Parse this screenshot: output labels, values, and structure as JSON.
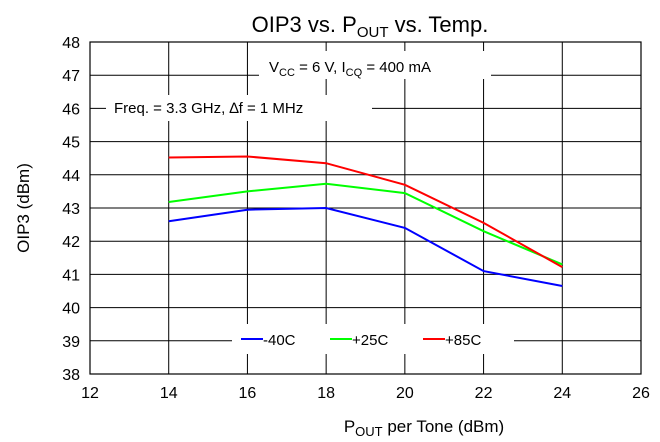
{
  "chart_data": {
    "type": "line",
    "title": {
      "main": "OIP3 vs. P",
      "sub": "OUT",
      "tail": " vs. Temp."
    },
    "xlabel": {
      "main": "P",
      "sub": "OUT",
      "tail": " per Tone (dBm)"
    },
    "ylabel": "OIP3 (dBm)",
    "xlim": [
      12,
      26
    ],
    "ylim": [
      38,
      48
    ],
    "xticks": [
      12,
      14,
      16,
      18,
      20,
      22,
      24,
      26
    ],
    "yticks": [
      38,
      39,
      40,
      41,
      42,
      43,
      44,
      45,
      46,
      47,
      48
    ],
    "grid": true,
    "legend_position": "bottom-center",
    "annotations": {
      "conditions": {
        "v": "V",
        "v_sub": "CC",
        "v_val": " = 6 V, I",
        "i_sub": "CQ",
        "i_val": " = 400 mA"
      },
      "frequency": "Freq. = 3.3 GHz, ∆f = 1 MHz"
    },
    "x": [
      14,
      16,
      18,
      20,
      22,
      24
    ],
    "series": [
      {
        "name": "-40C",
        "color": "#0000ff",
        "values": [
          42.6,
          42.95,
          43.0,
          42.4,
          41.1,
          40.65
        ]
      },
      {
        "name": "+25C",
        "color": "#00ff00",
        "values": [
          43.18,
          43.5,
          43.73,
          43.45,
          42.3,
          41.3
        ]
      },
      {
        "name": "+85C",
        "color": "#ff0000",
        "values": [
          44.52,
          44.55,
          44.35,
          43.7,
          42.55,
          41.22
        ]
      }
    ]
  }
}
